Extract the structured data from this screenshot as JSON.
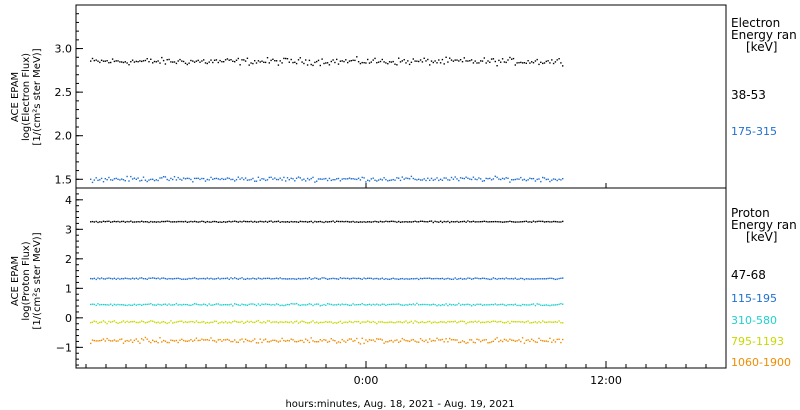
{
  "chart_data": [
    {
      "type": "scatter",
      "panel": "electron",
      "ylabel_lines": [
        "ACE EPAM",
        "log(Electron Flux)",
        "[1/(cm²s ster MeV)]"
      ],
      "ylim": [
        1.4,
        3.5
      ],
      "yticks": [
        1.5,
        2.0,
        2.5,
        3.0
      ],
      "ytick_labels": [
        "1.5",
        "2.0",
        "2.5",
        "3.0"
      ],
      "legend_title": [
        "Electron",
        "Energy ran",
        "[keV]"
      ],
      "series": [
        {
          "name": "38-53",
          "color": "#000000",
          "mean": 2.86,
          "spread": 0.06
        },
        {
          "name": "175-315",
          "color": "#1f6fd0",
          "mean": 1.51,
          "spread": 0.04
        }
      ]
    },
    {
      "type": "scatter",
      "panel": "proton",
      "ylabel_lines": [
        "ACE EPAM",
        "log(Proton Flux)",
        "[1/(cm²s ster MeV)]"
      ],
      "ylim": [
        -1.7,
        4.4
      ],
      "yticks": [
        -1,
        0,
        1,
        2,
        3,
        4
      ],
      "ytick_labels": [
        "−1",
        "0",
        "1",
        "2",
        "3",
        "4"
      ],
      "legend_title": [
        "Proton",
        "Energy ran",
        "[keV]"
      ],
      "series": [
        {
          "name": "47-68",
          "color": "#000000",
          "mean": 3.28,
          "spread": 0.03
        },
        {
          "name": "115-195",
          "color": "#1f6fd0",
          "mean": 1.35,
          "spread": 0.04
        },
        {
          "name": "310-580",
          "color": "#20d0d0",
          "mean": 0.47,
          "spread": 0.05
        },
        {
          "name": "795-1193",
          "color": "#c8d800",
          "mean": -0.12,
          "spread": 0.06
        },
        {
          "name": "1060-1900",
          "color": "#f08c00",
          "mean": -0.75,
          "spread": 0.13
        }
      ]
    }
  ],
  "x_axis": {
    "label": "hours:minutes, Aug. 18, 2021 - Aug. 19, 2021",
    "range_hours": [
      -14.5,
      18.0
    ],
    "data_end_hour": 9.8,
    "ticks": [
      0,
      12
    ],
    "tick_labels": [
      "0:00",
      "12:00"
    ]
  }
}
